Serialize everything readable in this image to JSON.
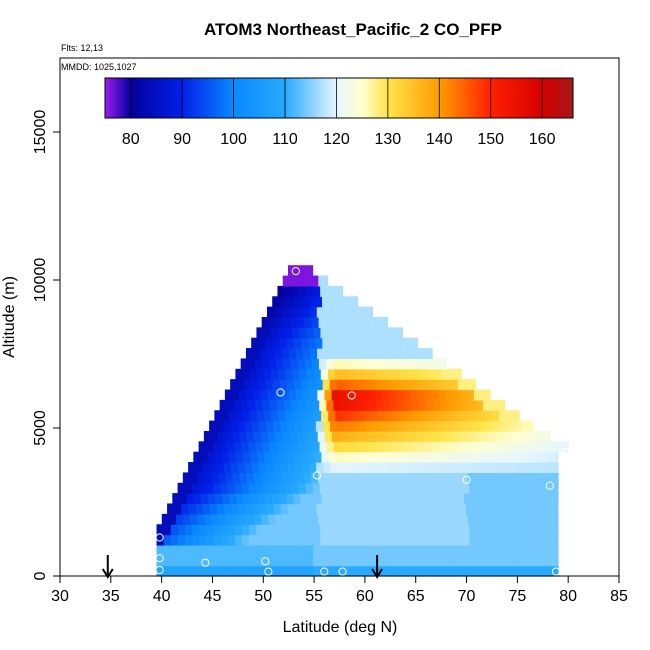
{
  "chart_data": {
    "type": "heatmap",
    "title": "ATOM3 Northeast_Pacific_2 CO_PFP",
    "flights_label": "Flts: 12,13",
    "dates_label": "MMDD: 1025,1027",
    "xlabel": "Latitude (deg N)",
    "ylabel": "Altitude (m)",
    "xlim": [
      30,
      85
    ],
    "ylim": [
      0,
      17500
    ],
    "x_ticks": [
      "30",
      "35",
      "40",
      "45",
      "50",
      "55",
      "60",
      "65",
      "70",
      "75",
      "80",
      "85"
    ],
    "y_ticks": [
      "0",
      "5000",
      "10000",
      "15000"
    ],
    "colorbar": {
      "range": [
        75,
        166
      ],
      "tick_labels": [
        "80",
        "90",
        "100",
        "110",
        "120",
        "130",
        "140",
        "150",
        "160"
      ],
      "stops": [
        {
          "v": 75,
          "c": "#9a1cf0"
        },
        {
          "v": 80,
          "c": "#05009c"
        },
        {
          "v": 90,
          "c": "#0020e8"
        },
        {
          "v": 100,
          "c": "#0a88ff"
        },
        {
          "v": 110,
          "c": "#27aaff"
        },
        {
          "v": 120,
          "c": "#e6f6ff"
        },
        {
          "v": 125,
          "c": "#ffffd0"
        },
        {
          "v": 130,
          "c": "#ffe44a"
        },
        {
          "v": 140,
          "c": "#ff9c00"
        },
        {
          "v": 150,
          "c": "#ff2000"
        },
        {
          "v": 160,
          "c": "#d60000"
        },
        {
          "v": 166,
          "c": "#a51919"
        }
      ]
    },
    "field": {
      "lat_step": 0.7,
      "alt_step": 350,
      "left_boundary": [
        [
          0,
          39.5
        ],
        [
          1400,
          39.5
        ],
        [
          10400,
          52.8
        ]
      ],
      "right_boundary": [
        [
          0,
          79
        ],
        [
          4200,
          79
        ],
        [
          4200,
          80
        ],
        [
          4800,
          77
        ],
        [
          7500,
          66
        ],
        [
          10400,
          53.8
        ]
      ],
      "lower_layers": [
        {
          "alt_min": 0,
          "alt_max": 350,
          "value": 108
        },
        {
          "alt_min": 350,
          "alt_max": 1000,
          "value": 112
        }
      ],
      "plume": {
        "lat_start": 55.5,
        "alt_base": 3500,
        "alt_core": 6000,
        "alt_top": 7500,
        "core_value": 157,
        "background_value": 117
      },
      "ambient_value": 116
    },
    "sample_points": [
      {
        "lat": 39.8,
        "alt": 200
      },
      {
        "lat": 39.8,
        "alt": 600
      },
      {
        "lat": 39.8,
        "alt": 1300
      },
      {
        "lat": 44.3,
        "alt": 450
      },
      {
        "lat": 50.2,
        "alt": 500
      },
      {
        "lat": 50.5,
        "alt": 150
      },
      {
        "lat": 56.0,
        "alt": 150
      },
      {
        "lat": 57.8,
        "alt": 150
      },
      {
        "lat": 55.3,
        "alt": 3400
      },
      {
        "lat": 51.7,
        "alt": 6200
      },
      {
        "lat": 58.7,
        "alt": 6100
      },
      {
        "lat": 53.2,
        "alt": 10300
      },
      {
        "lat": 70.0,
        "alt": 3250
      },
      {
        "lat": 78.2,
        "alt": 3050
      },
      {
        "lat": 79.8,
        "alt": 4200
      },
      {
        "lat": 78.8,
        "alt": 150
      }
    ],
    "arrows": [
      {
        "lat": 34.7
      },
      {
        "lat": 61.2
      }
    ]
  }
}
